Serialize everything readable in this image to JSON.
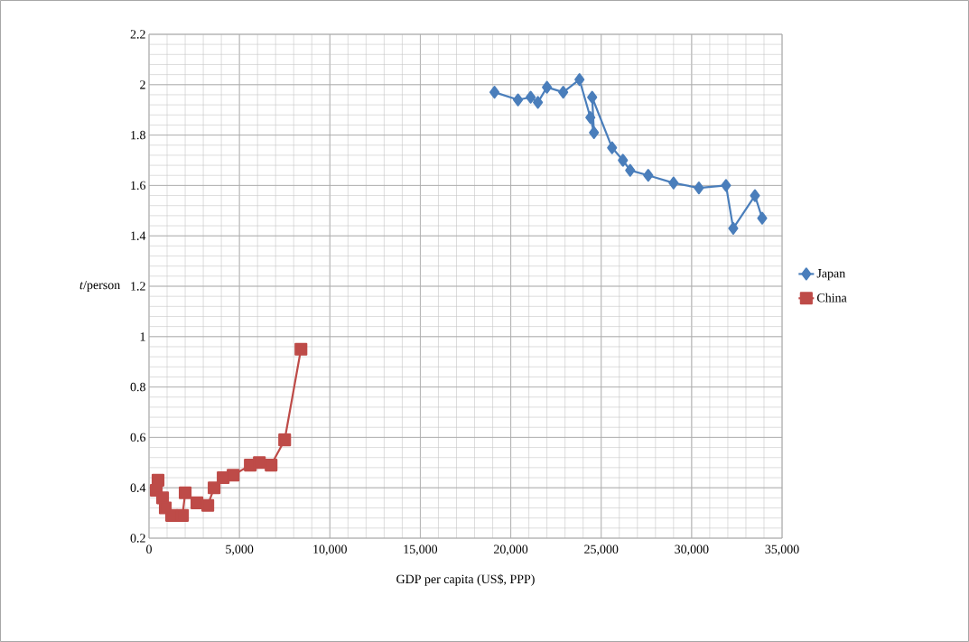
{
  "chart_data": {
    "type": "line",
    "xlabel": "GDP per capita (US$, PPP)",
    "ylabel": "*t*/person",
    "xlim": [
      0,
      35000
    ],
    "ylim": [
      0.2,
      2.2
    ],
    "xticks": [
      0,
      {
        "value": 5000,
        "label": "5,000"
      },
      {
        "value": 10000,
        "label": "10,000"
      },
      {
        "value": 15000,
        "label": "15,000"
      },
      {
        "value": 20000,
        "label": "20,000"
      },
      {
        "value": 25000,
        "label": "25,000"
      },
      {
        "value": 30000,
        "label": "30,000"
      },
      {
        "value": 35000,
        "label": "35,000"
      }
    ],
    "yticks": [
      0.2,
      0.4,
      0.6,
      0.8,
      1,
      1.2,
      1.4,
      1.6,
      1.8,
      2,
      2.2
    ],
    "grid": true,
    "legend": "right",
    "series": [
      {
        "name": "Japan",
        "color": "#4a7ebb",
        "marker": "diamond",
        "x": [
          19100,
          20400,
          21100,
          21500,
          22000,
          22900,
          23800,
          24400,
          24600,
          24500,
          25600,
          26200,
          26600,
          27600,
          29000,
          30400,
          31900,
          32300,
          33500,
          33900
        ],
        "values": [
          1.97,
          1.94,
          1.95,
          1.93,
          1.99,
          1.97,
          2.02,
          1.87,
          1.81,
          1.95,
          1.75,
          1.7,
          1.66,
          1.64,
          1.61,
          1.59,
          1.6,
          1.43,
          1.56,
          1.47
        ]
      },
      {
        "name": "China",
        "color": "#be4b48",
        "marker": "square",
        "x": [
          500,
          400,
          750,
          900,
          1250,
          1850,
          2000,
          2650,
          3250,
          3600,
          4100,
          4650,
          5600,
          6100,
          6750,
          7500,
          8400
        ],
        "values": [
          0.43,
          0.39,
          0.36,
          0.32,
          0.29,
          0.29,
          0.38,
          0.34,
          0.33,
          0.4,
          0.44,
          0.45,
          0.49,
          0.5,
          0.49,
          0.59,
          0.95
        ]
      }
    ]
  }
}
